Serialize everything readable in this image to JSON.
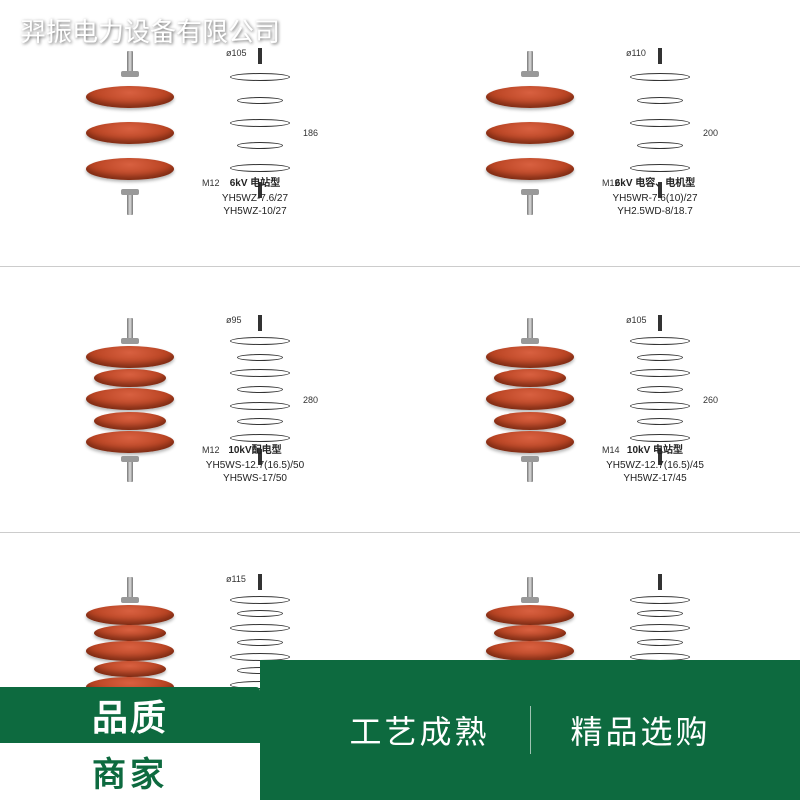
{
  "company_name": "羿振电力设备有限公司",
  "colors": {
    "shed": "#b84020",
    "accent": "#0d6a3f",
    "accent_text": "#ffffff",
    "label_text": "#222222"
  },
  "overlay": {
    "badge_line1": "品质",
    "badge_line2": "商家",
    "right_slogan1": "工艺成熟",
    "right_slogan2": "精品选购"
  },
  "products": [
    {
      "title": "6kV 电站型",
      "models": "YH5WZ-7.6/27\nYH5WZ-10/27",
      "shed_count": 3,
      "diameter_label": "ø105",
      "height_label": "186",
      "bolt_label": "M12"
    },
    {
      "title": "6kV 电容、电机型",
      "models": "YH5WR-7.6(10)/27\nYH2.5WD-8/18.7",
      "shed_count": 3,
      "diameter_label": "ø110",
      "height_label": "200",
      "bolt_label": "M12"
    },
    {
      "title": "10kV配电型",
      "models": "YH5WS-12.7(16.5)/50\nYH5WS-17/50",
      "shed_count": 4,
      "diameter_label": "ø95",
      "height_label": "280",
      "bolt_label": "M12"
    },
    {
      "title": "10kV 电站型",
      "models": "YH5WZ-12.7(16.5)/45\nYH5WZ-17/45",
      "shed_count": 4,
      "diameter_label": "ø105",
      "height_label": "260",
      "bolt_label": "M14"
    },
    {
      "title": "",
      "models": "",
      "shed_count": 5,
      "diameter_label": "ø115",
      "height_label": "",
      "bolt_label": ""
    },
    {
      "title": "",
      "models": "",
      "shed_count": 5,
      "diameter_label": "",
      "height_label": "",
      "bolt_label": ""
    }
  ]
}
